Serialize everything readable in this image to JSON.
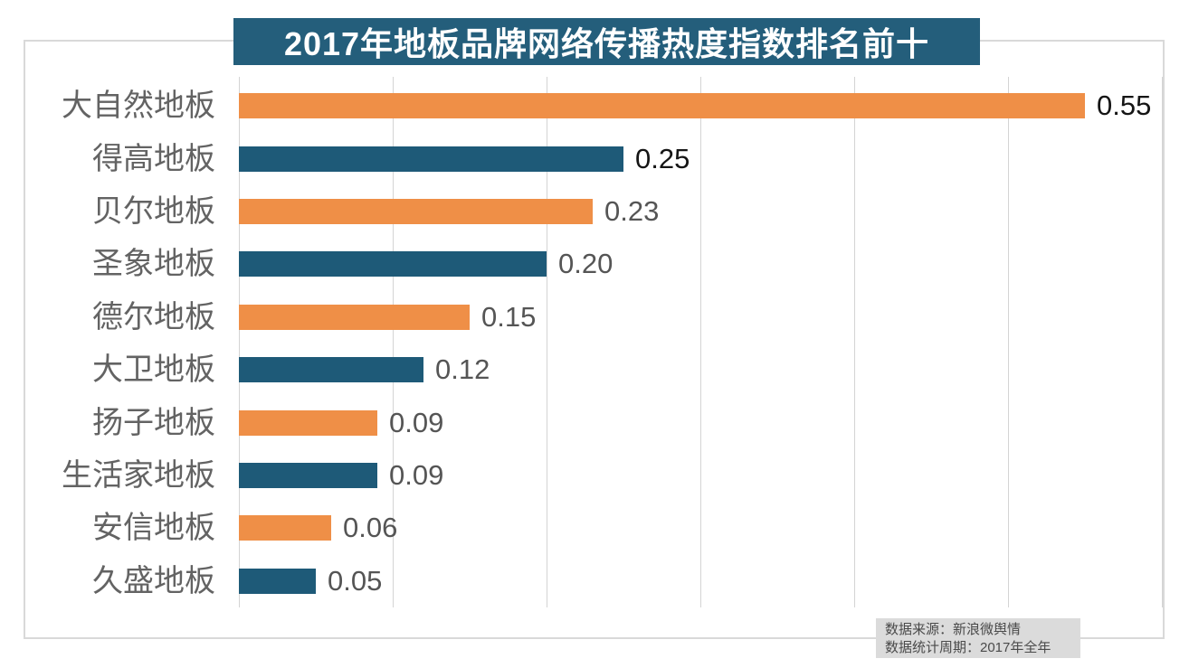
{
  "title": {
    "text": "2017年地板品牌网络传播热度指数排名前十",
    "bg_color": "#245E7B",
    "text_color": "#FFFFFF"
  },
  "chart_data": {
    "type": "bar",
    "orientation": "horizontal",
    "title": "2017年地板品牌网络传播热度指数排名前十",
    "xlabel": "",
    "ylabel": "",
    "categories": [
      "大自然地板",
      "得高地板",
      "贝尔地板",
      "圣象地板",
      "德尔地板",
      "大卫地板",
      "扬子地板",
      "生活家地板",
      "安信地板",
      "久盛地板"
    ],
    "values": [
      0.55,
      0.25,
      0.23,
      0.2,
      0.15,
      0.12,
      0.09,
      0.09,
      0.06,
      0.05
    ],
    "value_labels": [
      "0.55",
      "0.25",
      "0.23",
      "0.20",
      "0.15",
      "0.12",
      "0.09",
      "0.09",
      "0.06",
      "0.05"
    ],
    "value_label_colors": [
      "#151515",
      "#151515",
      "#555555",
      "#555555",
      "#555555",
      "#555555",
      "#555555",
      "#555555",
      "#555555",
      "#555555"
    ],
    "bar_color_odd_rows": "#EF8F47",
    "bar_color_even_rows": "#1E5A78",
    "xlim": [
      0,
      0.6
    ],
    "gridline_step": 0.1,
    "grid": true,
    "legend": false
  },
  "footer": {
    "line1": "数据来源：新浪微舆情",
    "line2": "数据统计周期：2017年全年",
    "bg_color": "#DBDBDB"
  }
}
